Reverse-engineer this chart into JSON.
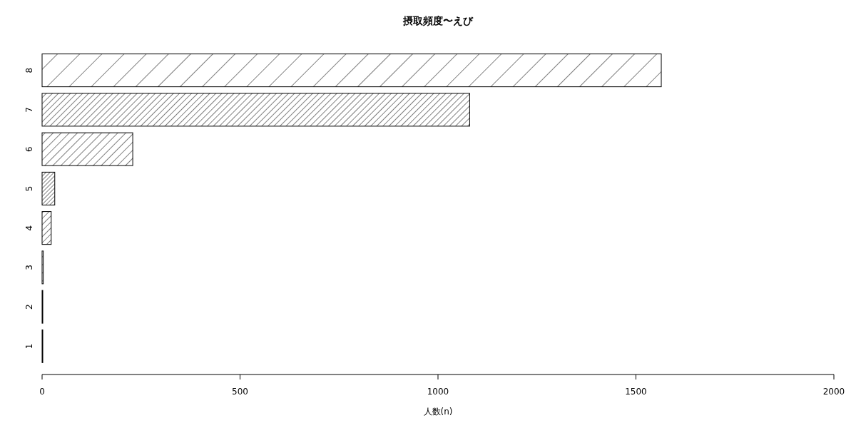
{
  "chart_data": {
    "type": "bar",
    "orientation": "horizontal",
    "title": "摂取頻度〜えび",
    "xlabel": "人数(n)",
    "categories": [
      "8",
      "7",
      "6",
      "5",
      "4",
      "3",
      "2",
      "1"
    ],
    "values": [
      1564,
      1080,
      229,
      32,
      23,
      3,
      1,
      1
    ],
    "color": "#000000",
    "xlim": [
      0,
      2000
    ],
    "xticks": [
      0,
      500,
      1000,
      1500,
      2000
    ],
    "grid": false
  }
}
